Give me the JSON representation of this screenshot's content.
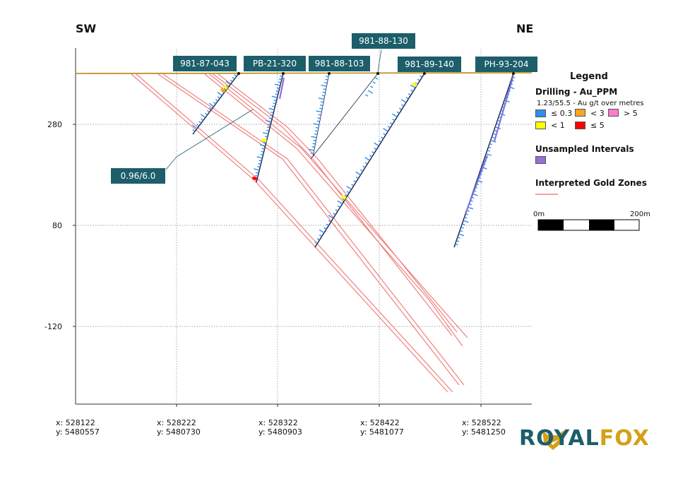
{
  "directions": {
    "left": "SW",
    "right": "NE"
  },
  "elevation_ticks": [
    {
      "value": 280,
      "label": "280"
    },
    {
      "value": 80,
      "label": "80"
    },
    {
      "value": -120,
      "label": "-120"
    }
  ],
  "easting_ticks": [
    {
      "x": "x: 528122",
      "y": "y: 5480557"
    },
    {
      "x": "x: 528222",
      "y": "y: 5480730"
    },
    {
      "x": "x: 528322",
      "y": "y: 5480903"
    },
    {
      "x": "x: 528422",
      "y": "y: 5481077"
    },
    {
      "x": "x: 528522",
      "y": "y: 5481250"
    }
  ],
  "drill_holes": [
    {
      "id": "981-87-043"
    },
    {
      "id": "PB-21-320"
    },
    {
      "id": "981-88-103"
    },
    {
      "id": "981-88-130"
    },
    {
      "id": "981-89-140"
    },
    {
      "id": "PH-93-204"
    }
  ],
  "annotation": {
    "label": "0.96/6.0"
  },
  "legend": {
    "title": "Legend",
    "drilling_title": "Drilling - Au_PPM",
    "drilling_subtitle": "1.23/55.5 - Au g/t over metres",
    "bins": [
      {
        "label": "≤ 0.3",
        "color": "#2e8ff0"
      },
      {
        "label": "< 3",
        "color": "#f5a623"
      },
      {
        "label": "> 5",
        "color": "#ff7ad0"
      },
      {
        "label": "< 1",
        "color": "#ffff00"
      },
      {
        "label": "≤ 5",
        "color": "#ff0000"
      }
    ],
    "unsampled_title": "Unsampled Intervals",
    "unsampled_color": "#9370db",
    "zones_title": "Interpreted Gold Zones",
    "zones_color": "#f08080",
    "scale_start": "0m",
    "scale_end": "200m"
  },
  "logo": {
    "text_left": "ROYAL",
    "text_right": "FOX",
    "color_left": "#1c5e6a",
    "color_right": "#d4a017"
  }
}
